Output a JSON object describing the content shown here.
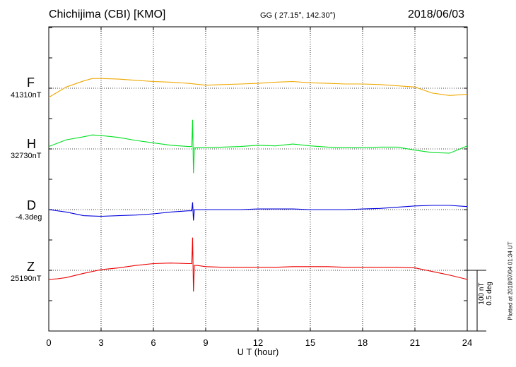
{
  "header": {
    "station": "Chichijima (CBI)  [KMO]",
    "coordinates": "GG ( 27.15°, 142.30°)",
    "date": "2018/06/03"
  },
  "components": [
    {
      "name": "F",
      "baseline": "41310nT",
      "color": "#f0a800"
    },
    {
      "name": "H",
      "baseline": "32730nT",
      "color": "#00e020"
    },
    {
      "name": "D",
      "baseline": "-4.3deg",
      "color": "#0000dd"
    },
    {
      "name": "Z",
      "baseline": "25190nT",
      "color": "#ee0000"
    }
  ],
  "scale": {
    "line1": "100 nT",
    "line2": "0.5 deg"
  },
  "plotted_at": "Plotted at 2018/07/04 01:34 UT",
  "chart_data": {
    "type": "line",
    "xlabel": "U T (hour)",
    "x_ticks": [
      "0",
      "3",
      "6",
      "9",
      "12",
      "15",
      "18",
      "21",
      "24"
    ],
    "xlim": [
      0,
      24
    ],
    "grid": true,
    "series": [
      {
        "name": "F",
        "unit": "nT",
        "baseline": 41310,
        "x": [
          0,
          1,
          2,
          2.5,
          3,
          4,
          5,
          6,
          7,
          8,
          9,
          10,
          11,
          12,
          13,
          14,
          15,
          16,
          17,
          18,
          19,
          20,
          21,
          21.5,
          22,
          23,
          24
        ],
        "y": [
          -15,
          2,
          12,
          16,
          16,
          15,
          13,
          11,
          10,
          8,
          5,
          6,
          7,
          8,
          10,
          11,
          9,
          8,
          7,
          7,
          6,
          4,
          2,
          -3,
          -8,
          -12,
          -10
        ]
      },
      {
        "name": "H",
        "unit": "nT",
        "baseline": 32730,
        "x": [
          0,
          1,
          2,
          2.5,
          3,
          4,
          5,
          6,
          7,
          8,
          8.2,
          8.25,
          8.3,
          8.35,
          8.5,
          9,
          10,
          11,
          12,
          13,
          14,
          15,
          16,
          17,
          18,
          19,
          20,
          21,
          22,
          23,
          24
        ],
        "y": [
          4,
          15,
          20,
          23,
          22,
          19,
          14,
          10,
          6,
          4,
          4,
          48,
          -40,
          2,
          2,
          2,
          3,
          4,
          6,
          5,
          8,
          5,
          3,
          2,
          2,
          3,
          3,
          -2,
          -6,
          -7,
          5
        ]
      },
      {
        "name": "D",
        "unit": "deg",
        "baseline": -4.3,
        "x": [
          0,
          1,
          2,
          3,
          4,
          5,
          6,
          7,
          8,
          8.2,
          8.25,
          8.3,
          8.35,
          8.5,
          9,
          10,
          11,
          12,
          13,
          14,
          15,
          16,
          17,
          18,
          19,
          20,
          21,
          22,
          23,
          24
        ],
        "y": [
          0,
          -0.02,
          -0.05,
          -0.055,
          -0.05,
          -0.045,
          -0.035,
          -0.02,
          -0.01,
          -0.01,
          0.06,
          -0.09,
          0.0,
          0.0,
          0.0,
          0.0,
          0.0,
          0.005,
          0.005,
          0.005,
          0.0,
          0.0,
          0.0,
          0.005,
          0.01,
          0.02,
          0.03,
          0.035,
          0.035,
          0.025
        ]
      },
      {
        "name": "Z",
        "unit": "nT",
        "baseline": 25190,
        "x": [
          0,
          0.5,
          1,
          2,
          3,
          4,
          5,
          6,
          7,
          8,
          8.2,
          8.25,
          8.3,
          8.35,
          8.5,
          9,
          10,
          11,
          12,
          13,
          14,
          15,
          16,
          17,
          18,
          19,
          20,
          21,
          22,
          23,
          24
        ],
        "y": [
          -15,
          -14,
          -12,
          -5,
          1,
          4,
          8,
          11,
          12,
          11,
          11,
          54,
          -35,
          8,
          8,
          6,
          5,
          5,
          5,
          5,
          6,
          6,
          6,
          5,
          5,
          5,
          5,
          4,
          -2,
          -8,
          -15
        ]
      }
    ]
  }
}
